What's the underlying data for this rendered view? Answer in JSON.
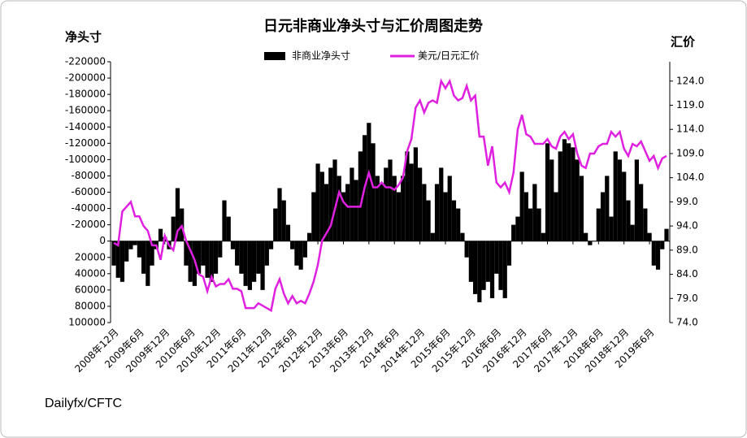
{
  "chart_data": {
    "type": "bar_line",
    "title": "日元非商业净头寸与汇价周图走势",
    "y_label": "净头寸",
    "y2_label": "汇价",
    "source": "Dailyfx/CFTC",
    "categories": [
      "2008年12月",
      null,
      null,
      null,
      null,
      null,
      "2009年6月",
      null,
      null,
      null,
      null,
      null,
      "2009年12月",
      null,
      null,
      null,
      null,
      null,
      "2010年6月",
      null,
      null,
      null,
      null,
      null,
      "2010年12月",
      null,
      null,
      null,
      null,
      null,
      "2011年6月",
      null,
      null,
      null,
      null,
      null,
      "2011年12月",
      null,
      null,
      null,
      null,
      null,
      "2012年6月",
      null,
      null,
      null,
      null,
      null,
      "2012年12月",
      null,
      null,
      null,
      null,
      null,
      "2013年6月",
      null,
      null,
      null,
      null,
      null,
      "2013年12月",
      null,
      null,
      null,
      null,
      null,
      "2014年6月",
      null,
      null,
      null,
      null,
      null,
      "2014年12月",
      null,
      null,
      null,
      null,
      null,
      "2015年6月",
      null,
      null,
      null,
      null,
      null,
      "2015年12月",
      null,
      null,
      null,
      null,
      null,
      "2016年6月",
      null,
      null,
      null,
      null,
      null,
      "2016年12月",
      null,
      null,
      null,
      null,
      null,
      "2017年6月",
      null,
      null,
      null,
      null,
      null,
      "2017年12月",
      null,
      null,
      null,
      null,
      null,
      "2018年6月",
      null,
      null,
      null,
      null,
      null,
      "2018年12月",
      null,
      null,
      null,
      null,
      null,
      "2019年6月",
      null,
      null,
      null,
      null
    ],
    "series": [
      {
        "name": "非商业净头寸",
        "type": "bar",
        "color": "#000000",
        "values": [
          30000,
          45000,
          50000,
          25000,
          10000,
          5000,
          20000,
          40000,
          55000,
          30000,
          10000,
          -15000,
          -5000,
          10000,
          -30000,
          -65000,
          -40000,
          30000,
          50000,
          55000,
          40000,
          30000,
          45000,
          50000,
          40000,
          20000,
          -50000,
          -30000,
          10000,
          30000,
          40000,
          55000,
          60000,
          50000,
          40000,
          60000,
          30000,
          10000,
          -40000,
          -65000,
          -50000,
          -20000,
          10000,
          30000,
          35000,
          20000,
          -10000,
          -60000,
          -95000,
          -85000,
          -70000,
          -90000,
          -100000,
          -80000,
          -60000,
          -70000,
          -90000,
          -75000,
          -110000,
          -130000,
          -145000,
          -120000,
          -80000,
          -70000,
          -90000,
          -100000,
          -80000,
          -60000,
          -80000,
          -110000,
          -95000,
          -115000,
          -90000,
          -70000,
          -50000,
          -10000,
          -70000,
          -90000,
          -60000,
          -80000,
          -50000,
          -40000,
          -10000,
          20000,
          50000,
          65000,
          75000,
          60000,
          50000,
          70000,
          40000,
          60000,
          70000,
          30000,
          -20000,
          -30000,
          -85000,
          -60000,
          -40000,
          -70000,
          -40000,
          -10000,
          -120000,
          -100000,
          -60000,
          -110000,
          -125000,
          -120000,
          -115000,
          -100000,
          -80000,
          -10000,
          5000,
          0,
          -40000,
          -60000,
          -80000,
          -30000,
          -110000,
          -100000,
          -85000,
          -50000,
          -20000,
          -100000,
          -70000,
          -40000,
          -10000,
          30000,
          35000,
          10000,
          -15000
        ]
      },
      {
        "name": "美元/日元汇价",
        "type": "line",
        "axis": "y2",
        "color": "#e020e0",
        "values": [
          90.5,
          90,
          97,
          98,
          99,
          96,
          96,
          94,
          93,
          90,
          90,
          87,
          92,
          90,
          89,
          93,
          94,
          91,
          89,
          87,
          84,
          83.5,
          80.5,
          83.5,
          81.5,
          82,
          82,
          83,
          81,
          81,
          80.5,
          77,
          77,
          77,
          78,
          77.5,
          77,
          76.5,
          81,
          83,
          80,
          78,
          79.5,
          78,
          78.5,
          78,
          80,
          82.5,
          86,
          91,
          92.5,
          94,
          97.5,
          101,
          99,
          98,
          98,
          98,
          98,
          102,
          105,
          102,
          102,
          103,
          102,
          102,
          101.5,
          102.5,
          104,
          109.5,
          112,
          118.5,
          120,
          117.5,
          119.5,
          120,
          119.5,
          124,
          122.5,
          124,
          121,
          120,
          120.5,
          123,
          120,
          121,
          112.5,
          112.5,
          106.5,
          110.5,
          103,
          102,
          103,
          101,
          105,
          114,
          117,
          113,
          112.5,
          111,
          111,
          111,
          112,
          110.5,
          110,
          112.5,
          113.5,
          112,
          113,
          109,
          106.5,
          106,
          109,
          109,
          110.5,
          111,
          111,
          113.5,
          112.5,
          113.5,
          110,
          108.5,
          111,
          110.5,
          111.5,
          109.5,
          107.5,
          108.5,
          106,
          108,
          108.5
        ]
      }
    ],
    "ylim": [
      100000,
      -220000
    ],
    "yticks": [
      100000,
      80000,
      60000,
      40000,
      20000,
      0,
      -20000,
      -40000,
      -60000,
      -80000,
      -100000,
      -120000,
      -140000,
      -160000,
      -180000,
      -200000,
      -220000
    ],
    "y2lim": [
      74,
      128
    ],
    "y2ticks": [
      {
        "value": 74,
        "label": "74.0"
      },
      {
        "value": 79,
        "label": "79.0"
      },
      {
        "value": 84,
        "label": "84.0"
      },
      {
        "value": 89,
        "label": "89.0"
      },
      {
        "value": 94,
        "label": "94.0"
      },
      {
        "value": 99,
        "label": "99.0"
      },
      {
        "value": 104,
        "label": "104.0"
      },
      {
        "value": 109,
        "label": "109.0"
      },
      {
        "value": 114,
        "label": "114.0"
      },
      {
        "value": 119,
        "label": "119.0"
      },
      {
        "value": 124,
        "label": "124.0"
      }
    ]
  }
}
